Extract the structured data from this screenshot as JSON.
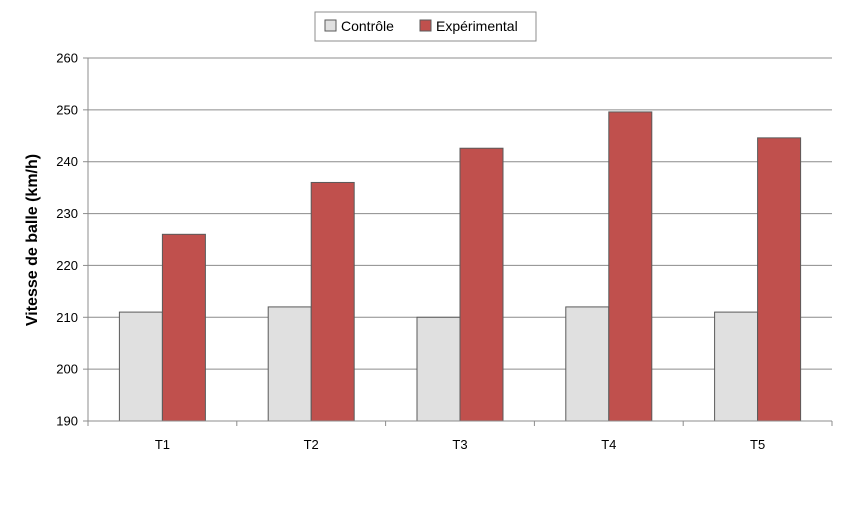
{
  "chart_data": {
    "type": "bar",
    "title": "",
    "xlabel": "",
    "ylabel": "Vitesse de balle (km/h)",
    "categories": [
      "T1",
      "T2",
      "T3",
      "T4",
      "T5"
    ],
    "series": [
      {
        "name": "Contrôle",
        "values": [
          211,
          212,
          210,
          212,
          211
        ],
        "color": "#e0e0e0"
      },
      {
        "name": "Expérimental",
        "values": [
          226,
          236,
          242.6,
          249.6,
          244.6
        ],
        "color": "#c0504d"
      }
    ],
    "ylim": [
      190,
      260
    ],
    "yticks": [
      190,
      200,
      210,
      220,
      230,
      240,
      250,
      260
    ],
    "grid": true,
    "legend_position": "top-center"
  }
}
